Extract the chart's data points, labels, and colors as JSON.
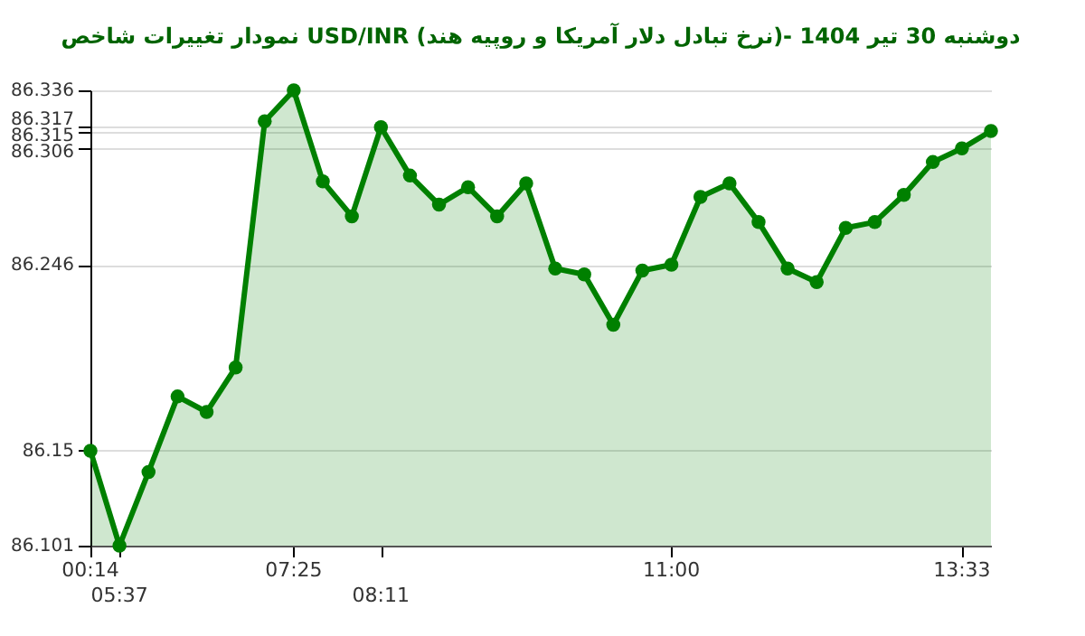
{
  "chart_data": {
    "type": "area",
    "title": "نمودار تغییرات شاخص USD/INR (نرخ تبادل دلار آمریکا و روپیه هند)- دوشنبه 30 تیر 1404",
    "categories": [
      "00:14",
      "05:37",
      null,
      null,
      null,
      null,
      null,
      "07:25",
      null,
      null,
      "08:11",
      null,
      null,
      null,
      null,
      null,
      null,
      null,
      null,
      null,
      "11:00",
      null,
      null,
      null,
      null,
      null,
      null,
      null,
      null,
      null,
      "13:33",
      null
    ],
    "series": [
      {
        "color": "#008000",
        "values": [
          86.15,
          86.101,
          86.139,
          86.178,
          86.17,
          86.193,
          86.32,
          86.336,
          86.289,
          86.271,
          86.317,
          86.292,
          86.277,
          86.286,
          86.271,
          86.288,
          86.244,
          86.241,
          86.215,
          86.243,
          86.246,
          86.281,
          86.288,
          86.268,
          86.244,
          86.237,
          86.265,
          86.268,
          86.282,
          86.299,
          86.306,
          86.315
        ]
      }
    ],
    "ylim": [
      86.101,
      86.336
    ],
    "yticks": [
      86.101,
      86.15,
      86.246,
      86.306,
      86.315,
      86.317,
      86.336
    ],
    "grid": "y",
    "marker": "circle",
    "line_style": "solid"
  }
}
